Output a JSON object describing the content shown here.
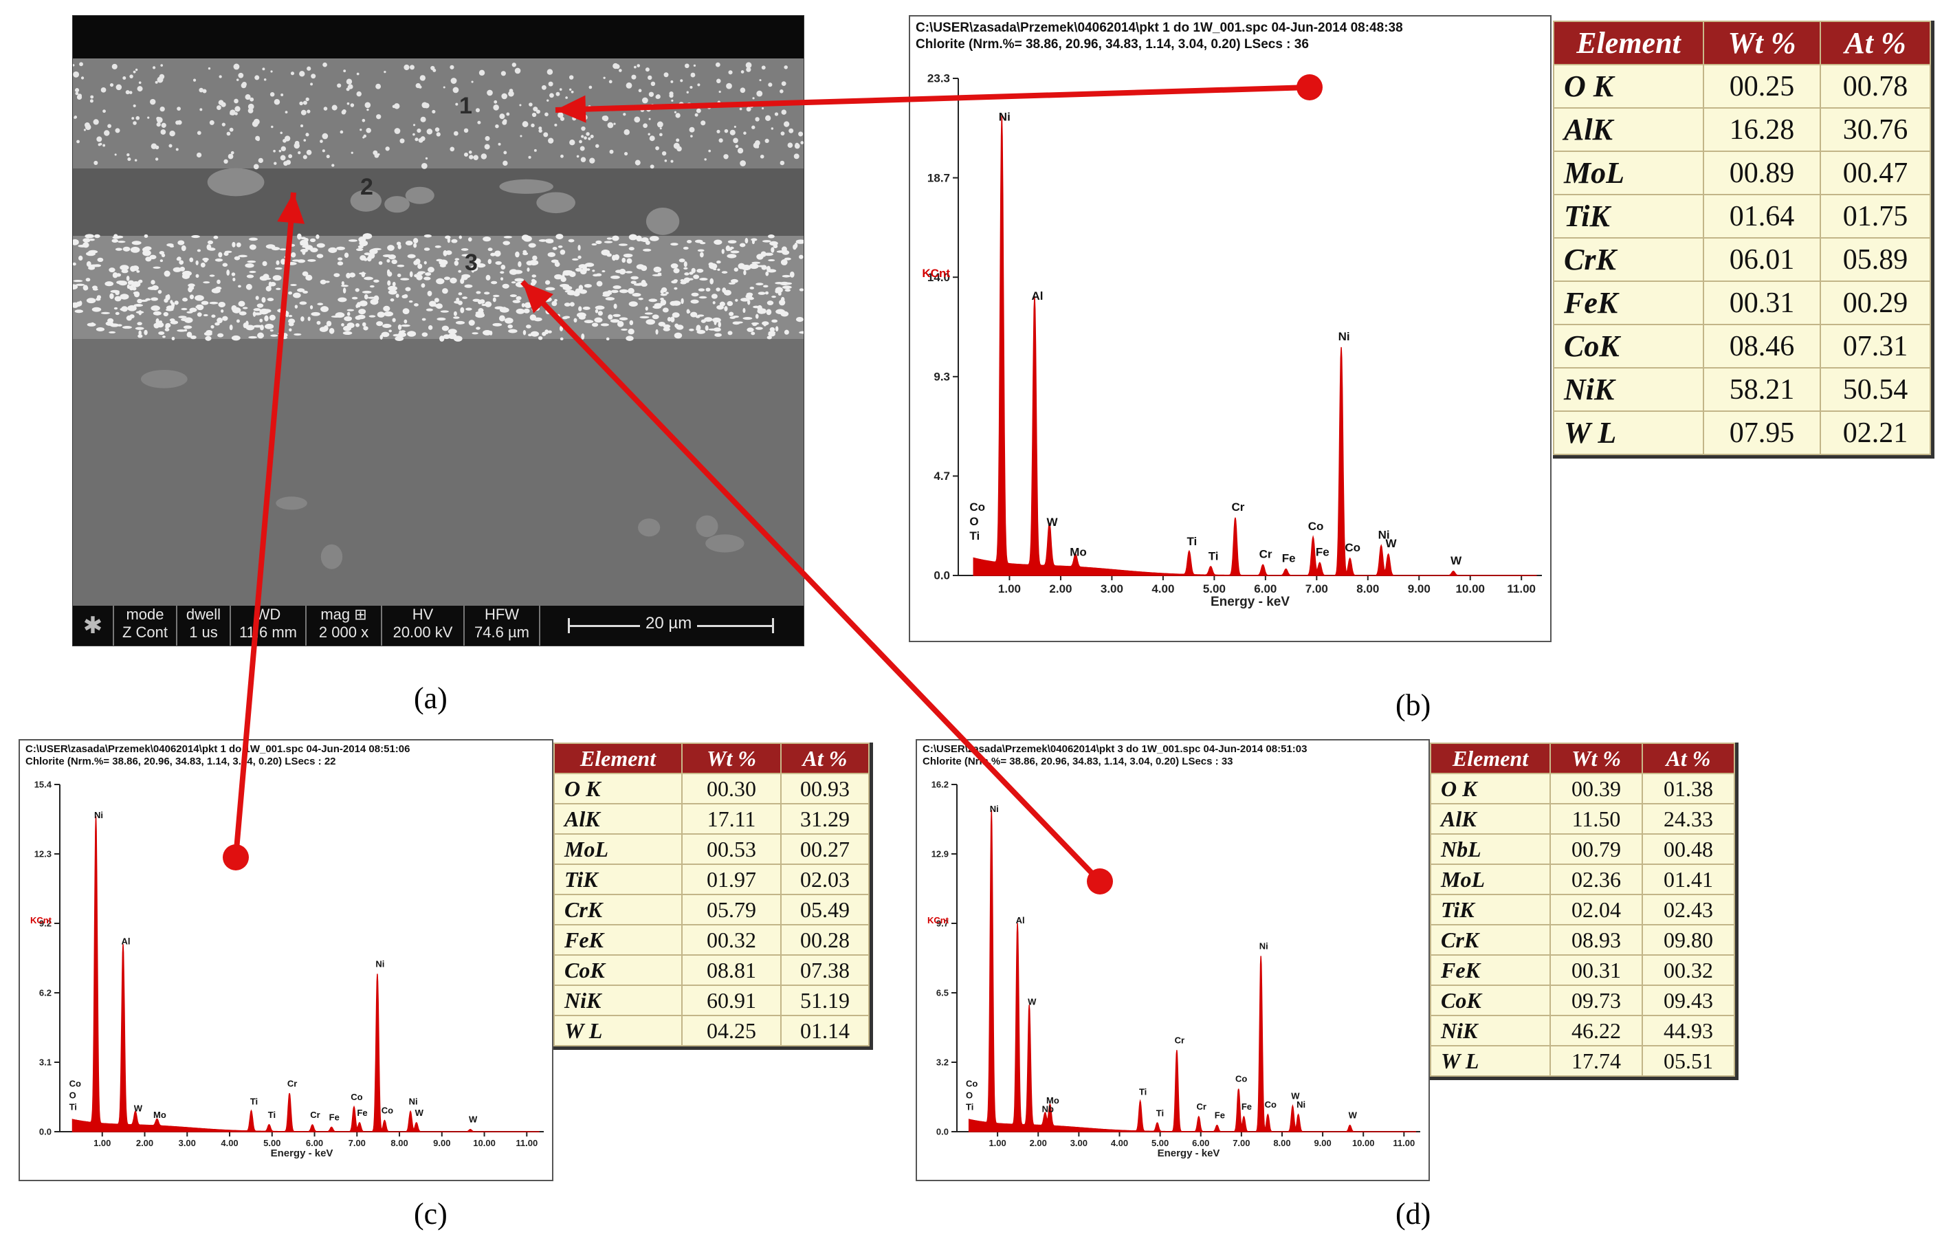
{
  "sem": {
    "zone_labels": [
      "1",
      "2",
      "3"
    ],
    "databar": [
      {
        "h": "mode",
        "v": "Z Cont"
      },
      {
        "h": "dwell",
        "v": "1 us"
      },
      {
        "h": "WD",
        "v": "11.6 mm"
      },
      {
        "h": "mag ⊞",
        "v": "2 000 x"
      },
      {
        "h": "HV",
        "v": "20.00 kV"
      },
      {
        "h": "HFW",
        "v": "74.6 µm"
      }
    ],
    "scale_label": "20 µm"
  },
  "captions": {
    "a": "(a)",
    "b": "(b)",
    "c": "(c)",
    "d": "(d)"
  },
  "colors": {
    "spectrum": "#d40000",
    "arrow": "#e01010",
    "table_header": "#9b1f1f",
    "table_cell": "#fbf9d9"
  },
  "chart_data": [
    {
      "id": "b",
      "type": "line",
      "header_line1": "C:\\USER\\zasada\\Przemek\\04062014\\pkt 1 do 1W_001.spc  04-Jun-2014 08:48:38",
      "header_line2": "Chlorite (Nrm.%= 38.86, 20.96, 34.83, 1.14, 3.04, 0.20)          LSecs : 36",
      "xlabel": "Energy - keV",
      "ylabel": "KCnt",
      "xlim": [
        0,
        11.4
      ],
      "ylim": [
        0,
        23.3
      ],
      "x_ticks": [
        "1.00",
        "2.00",
        "3.00",
        "4.00",
        "5.00",
        "6.00",
        "7.00",
        "8.00",
        "9.00",
        "10.00",
        "11.00"
      ],
      "y_ticks": [
        "0.0",
        "4.7",
        "9.3",
        "14.0",
        "18.7",
        "23.3"
      ],
      "peaks": [
        {
          "label": "Ni",
          "x": 0.85,
          "y": 21.0
        },
        {
          "label": "Al",
          "x": 1.49,
          "y": 12.6
        },
        {
          "label": "W",
          "x": 1.78,
          "y": 2.0
        },
        {
          "label": "Mo",
          "x": 2.29,
          "y": 0.6
        },
        {
          "label": "Ti",
          "x": 4.51,
          "y": 1.1
        },
        {
          "label": "Ti",
          "x": 4.93,
          "y": 0.4
        },
        {
          "label": "Cr",
          "x": 5.41,
          "y": 2.7
        },
        {
          "label": "Cr",
          "x": 5.95,
          "y": 0.5
        },
        {
          "label": "Fe",
          "x": 6.4,
          "y": 0.3
        },
        {
          "label": "Co",
          "x": 6.93,
          "y": 1.8
        },
        {
          "label": "Fe",
          "x": 7.06,
          "y": 0.6
        },
        {
          "label": "Ni",
          "x": 7.48,
          "y": 10.7
        },
        {
          "label": "Co",
          "x": 7.65,
          "y": 0.8
        },
        {
          "label": "Ni",
          "x": 8.26,
          "y": 1.4
        },
        {
          "label": "W",
          "x": 8.4,
          "y": 1.0
        },
        {
          "label": "W",
          "x": 9.67,
          "y": 0.2
        }
      ],
      "low_labels": [
        "Co",
        "O",
        "Ti"
      ],
      "table": {
        "headers": [
          "Element",
          "Wt %",
          "At %"
        ],
        "rows": [
          [
            "O K",
            "00.25",
            "00.78"
          ],
          [
            "AlK",
            "16.28",
            "30.76"
          ],
          [
            "MoL",
            "00.89",
            "00.47"
          ],
          [
            "TiK",
            "01.64",
            "01.75"
          ],
          [
            "CrK",
            "06.01",
            "05.89"
          ],
          [
            "FeK",
            "00.31",
            "00.29"
          ],
          [
            "CoK",
            "08.46",
            "07.31"
          ],
          [
            "NiK",
            "58.21",
            "50.54"
          ],
          [
            "W L",
            "07.95",
            "02.21"
          ]
        ]
      }
    },
    {
      "id": "c",
      "type": "line",
      "header_line1": "C:\\USER\\zasada\\Przemek\\04062014\\pkt 1 do 1W_001.spc  04-Jun-2014 08:51:06",
      "header_line2": "Chlorite (Nrm.%= 38.86, 20.96, 34.83, 1.14, 3.04, 0.20)          LSecs : 22",
      "xlabel": "Energy - keV",
      "ylabel": "KCnt",
      "xlim": [
        0,
        11.4
      ],
      "ylim": [
        0,
        15.4
      ],
      "x_ticks": [
        "1.00",
        "2.00",
        "3.00",
        "4.00",
        "5.00",
        "6.00",
        "7.00",
        "8.00",
        "9.00",
        "10.00",
        "11.00"
      ],
      "y_ticks": [
        "0.0",
        "3.1",
        "6.2",
        "9.2",
        "12.3",
        "15.4"
      ],
      "peaks": [
        {
          "label": "Ni",
          "x": 0.85,
          "y": 13.6
        },
        {
          "label": "Al",
          "x": 1.49,
          "y": 8.0
        },
        {
          "label": "W",
          "x": 1.78,
          "y": 0.6
        },
        {
          "label": "Mo",
          "x": 2.29,
          "y": 0.3
        },
        {
          "label": "Ti",
          "x": 4.51,
          "y": 0.9
        },
        {
          "label": "Ti",
          "x": 4.93,
          "y": 0.3
        },
        {
          "label": "Cr",
          "x": 5.41,
          "y": 1.7
        },
        {
          "label": "Cr",
          "x": 5.95,
          "y": 0.3
        },
        {
          "label": "Fe",
          "x": 6.4,
          "y": 0.2
        },
        {
          "label": "Co",
          "x": 6.93,
          "y": 1.1
        },
        {
          "label": "Fe",
          "x": 7.06,
          "y": 0.4
        },
        {
          "label": "Ni",
          "x": 7.48,
          "y": 7.0
        },
        {
          "label": "Co",
          "x": 7.65,
          "y": 0.5
        },
        {
          "label": "Ni",
          "x": 8.26,
          "y": 0.9
        },
        {
          "label": "W",
          "x": 8.4,
          "y": 0.4
        },
        {
          "label": "W",
          "x": 9.67,
          "y": 0.1
        }
      ],
      "low_labels": [
        "Co",
        "O",
        "Ti"
      ],
      "table": {
        "headers": [
          "Element",
          "Wt %",
          "At %"
        ],
        "rows": [
          [
            "O K",
            "00.30",
            "00.93"
          ],
          [
            "AlK",
            "17.11",
            "31.29"
          ],
          [
            "MoL",
            "00.53",
            "00.27"
          ],
          [
            "TiK",
            "01.97",
            "02.03"
          ],
          [
            "CrK",
            "05.79",
            "05.49"
          ],
          [
            "FeK",
            "00.32",
            "00.28"
          ],
          [
            "CoK",
            "08.81",
            "07.38"
          ],
          [
            "NiK",
            "60.91",
            "51.19"
          ],
          [
            "W L",
            "04.25",
            "01.14"
          ]
        ]
      }
    },
    {
      "id": "d",
      "type": "line",
      "header_line1": "C:\\USER\\zasada\\Przemek\\04062014\\pkt 3 do 1W_001.spc  04-Jun-2014 08:51:03",
      "header_line2": "Chlorite (Nrm.%= 38.86, 20.96, 34.83, 1.14, 3.04, 0.20)          LSecs : 33",
      "xlabel": "Energy - keV",
      "ylabel": "KCnt",
      "xlim": [
        0,
        11.4
      ],
      "ylim": [
        0,
        16.2
      ],
      "x_ticks": [
        "1.00",
        "2.00",
        "3.00",
        "4.00",
        "5.00",
        "6.00",
        "7.00",
        "8.00",
        "9.00",
        "10.00",
        "11.00"
      ],
      "y_ticks": [
        "0.0",
        "3.2",
        "6.5",
        "9.7",
        "12.9",
        "16.2"
      ],
      "peaks": [
        {
          "label": "Ni",
          "x": 0.85,
          "y": 14.6
        },
        {
          "label": "Al",
          "x": 1.49,
          "y": 9.4
        },
        {
          "label": "W",
          "x": 1.78,
          "y": 5.6
        },
        {
          "label": "Mo",
          "x": 2.29,
          "y": 1.0
        },
        {
          "label": "Nb",
          "x": 2.17,
          "y": 0.6
        },
        {
          "label": "Ti",
          "x": 4.51,
          "y": 1.4
        },
        {
          "label": "Ti",
          "x": 4.93,
          "y": 0.4
        },
        {
          "label": "Cr",
          "x": 5.41,
          "y": 3.8
        },
        {
          "label": "Cr",
          "x": 5.95,
          "y": 0.7
        },
        {
          "label": "Fe",
          "x": 6.4,
          "y": 0.3
        },
        {
          "label": "Co",
          "x": 6.93,
          "y": 2.0
        },
        {
          "label": "Fe",
          "x": 7.06,
          "y": 0.7
        },
        {
          "label": "Ni",
          "x": 7.48,
          "y": 8.2
        },
        {
          "label": "Co",
          "x": 7.65,
          "y": 0.8
        },
        {
          "label": "W",
          "x": 8.26,
          "y": 1.2
        },
        {
          "label": "Ni",
          "x": 8.4,
          "y": 0.8
        },
        {
          "label": "W",
          "x": 9.67,
          "y": 0.3
        }
      ],
      "low_labels": [
        "Co",
        "O",
        "Ti"
      ],
      "table": {
        "headers": [
          "Element",
          "Wt %",
          "At %"
        ],
        "rows": [
          [
            "O K",
            "00.39",
            "01.38"
          ],
          [
            "AlK",
            "11.50",
            "24.33"
          ],
          [
            "NbL",
            "00.79",
            "00.48"
          ],
          [
            "MoL",
            "02.36",
            "01.41"
          ],
          [
            "TiK",
            "02.04",
            "02.43"
          ],
          [
            "CrK",
            "08.93",
            "09.80"
          ],
          [
            "FeK",
            "00.31",
            "00.32"
          ],
          [
            "CoK",
            "09.73",
            "09.43"
          ],
          [
            "NiK",
            "46.22",
            "44.93"
          ],
          [
            "W L",
            "17.74",
            "05.51"
          ]
        ]
      }
    }
  ]
}
